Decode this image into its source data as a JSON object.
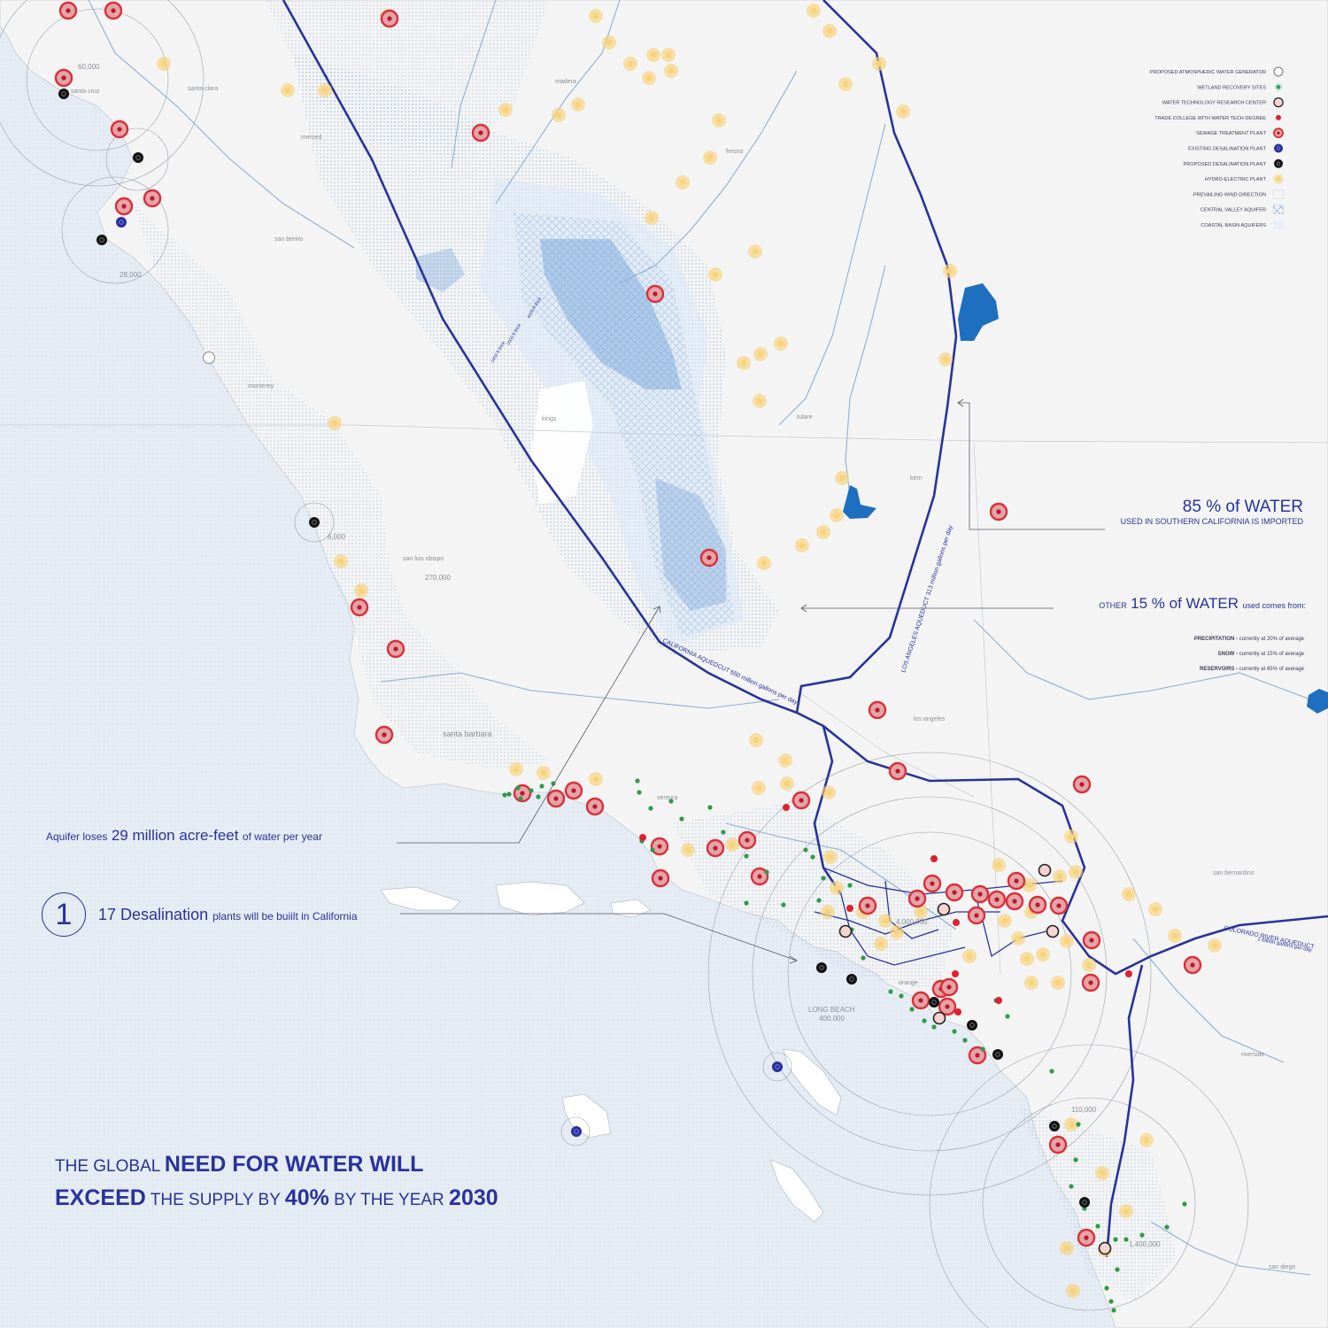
{
  "legend": {
    "items": [
      {
        "label": "PROPOSED ATMOSPHERIC WATER GENERATOR",
        "icon": "atmospheric-generator-icon"
      },
      {
        "label": "WETLAND RECOVERY SITES",
        "icon": "wetland-icon"
      },
      {
        "label": "WATER TECHNOLOGY RESEARCH CENTER",
        "icon": "research-center-icon"
      },
      {
        "label": "TRADE COLLEGE WITH WATER TECH DEGREE",
        "icon": "trade-college-icon"
      },
      {
        "label": "SEWAGE TREATMENT PLANT",
        "icon": "sewage-plant-icon"
      },
      {
        "label": "EXISTING DESALINATION PLANT",
        "icon": "existing-desal-icon"
      },
      {
        "label": "PROPOSED DESALINATION PLANT",
        "icon": "proposed-desal-icon"
      },
      {
        "label": "HYDRO-ELECTRIC PLANT",
        "icon": "hydro-plant-icon"
      },
      {
        "label": "PREVAILING WIND DIRECTION",
        "icon": "wind-direction-icon"
      },
      {
        "label": "CENTRAL VALLEY AQUIFER",
        "icon": "central-aquifer-icon"
      },
      {
        "label": "COASTAL BASIN AQUIFERS",
        "icon": "coastal-aquifer-icon"
      }
    ]
  },
  "places": [
    "santa cruz",
    "santa clara",
    "merced",
    "madera",
    "fresno",
    "san benito",
    "monterey",
    "kings",
    "tulare",
    "kern",
    "san luis obispo",
    "santa barbara",
    "ventura",
    "los angeles",
    "orange",
    "san bernardino",
    "riverside",
    "san diego",
    "LONG BEACH"
  ],
  "populations": [
    "60,000",
    "28,000",
    "6,000",
    "270,000",
    "4,000,000",
    "400,000",
    "110,000",
    "1,400,000"
  ],
  "aqueducts": {
    "california": "CALIFORNIA AQUEDCUT  650 million gallons per day",
    "los_angeles": "LOS ANGELES AQUEDUCT   313 million gallons per day",
    "colorado": "COLORADO RIVER AQUEDUCT",
    "colorado_sub": "1 billion gallons per day"
  },
  "aquifer_contours": [
    "4000 ft thick",
    "2000 ft thick",
    "1000 ft thick"
  ],
  "annotations": {
    "imported": {
      "value": "85 % of WATER",
      "sub": "USED IN SOUTHERN CALIFORNIA IS IMPORTED"
    },
    "other": {
      "pre": "OTHER",
      "value": "15 % of WATER",
      "post": "used comes from:"
    },
    "sources": [
      {
        "name": "PRECIPITATION -",
        "detail": "currently at 20% of average"
      },
      {
        "name": "SNOW -",
        "detail": "currently at 15% of average"
      },
      {
        "name": "RESERVOIRS -",
        "detail": "currently at 65% of average"
      }
    ],
    "aquifer_loss": {
      "pre": "Aquifer loses",
      "value": "29 million acre-feet",
      "post": "of water per year"
    },
    "desal": {
      "number": "1",
      "value": "17 Desalination",
      "post": "plants will be buiilt in California"
    }
  },
  "headline": {
    "line1": [
      {
        "text": "THE GLOBAL ",
        "style": "small"
      },
      {
        "text": "NEED FOR WATER WILL",
        "style": "big"
      }
    ],
    "line2": [
      {
        "text": "EXCEED",
        "style": "big"
      },
      {
        "text": " THE SUPPLY BY ",
        "style": "small"
      },
      {
        "text": "40%",
        "style": "big"
      },
      {
        "text": " BY THE YEAR ",
        "style": "small"
      },
      {
        "text": "2030",
        "style": "big"
      }
    ]
  },
  "colors": {
    "ocean": "#e6ecf4",
    "land": "#f4f4f4",
    "aqueduct": "#28339a",
    "river": "#8eaed2",
    "aquifer": "#6fa0d8",
    "reservoir": "#1e6fc0",
    "sewage": "#d8303a",
    "hydro": "#f7d37a",
    "wetland": "#2f9a4a",
    "text_accent": "#28339a"
  }
}
